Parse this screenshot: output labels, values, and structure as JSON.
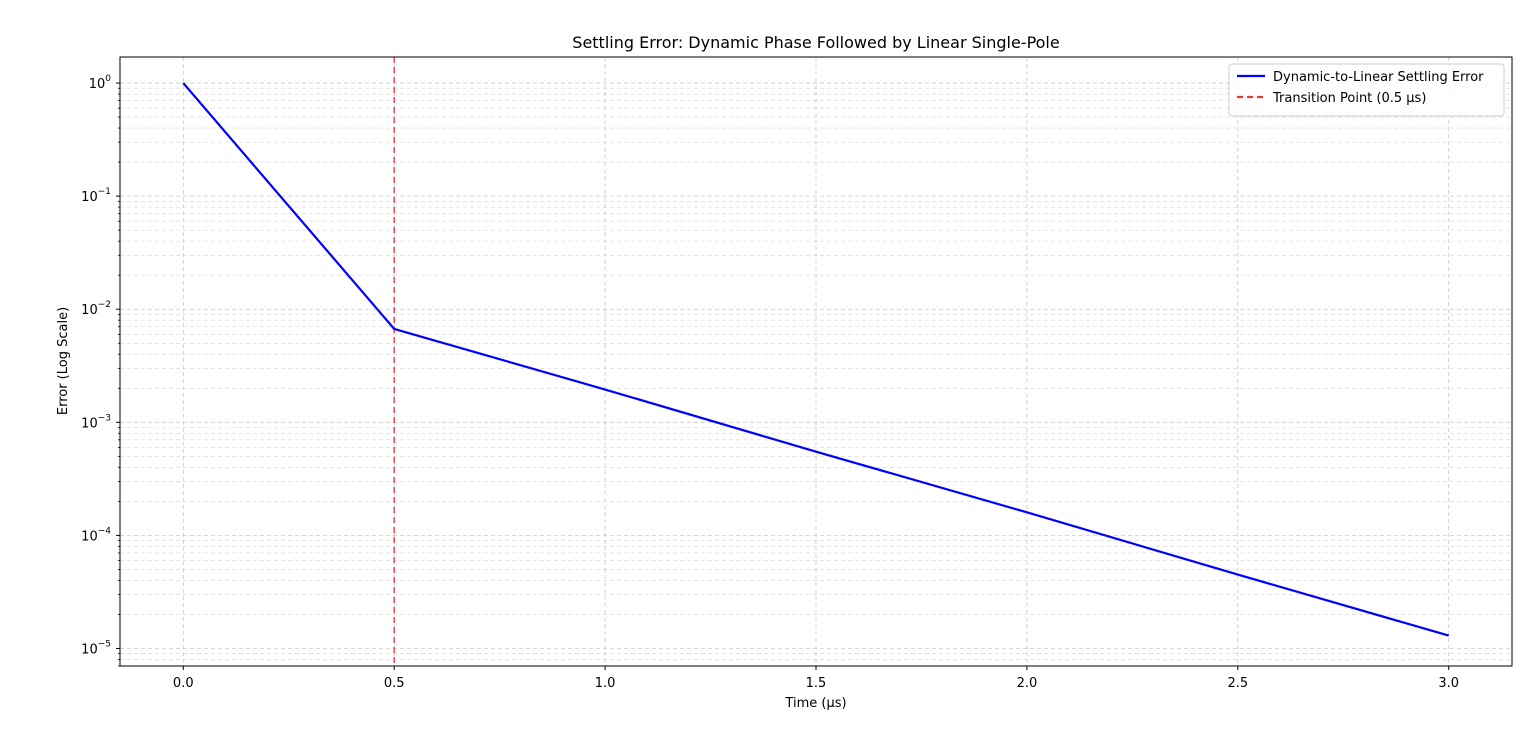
{
  "chart_data": {
    "type": "line",
    "title": "Settling Error: Dynamic Phase Followed by Linear Single-Pole",
    "xlabel": "Time (μs)",
    "ylabel": "Error (Log Scale)",
    "xlim": [
      -0.15,
      3.15
    ],
    "ylim": [
      7e-06,
      1.7
    ],
    "yscale": "log",
    "grid": true,
    "legend_position": "top-right",
    "x_ticks": [
      0.0,
      0.5,
      1.0,
      1.5,
      2.0,
      2.5,
      3.0
    ],
    "x_tick_labels": [
      "0.0",
      "0.5",
      "1.0",
      "1.5",
      "2.0",
      "2.5",
      "3.0"
    ],
    "y_ticks": [
      {
        "base": "10",
        "exp": "0",
        "value": 1
      },
      {
        "base": "10",
        "exp": "−1",
        "value": 0.1
      },
      {
        "base": "10",
        "exp": "−2",
        "value": 0.01
      },
      {
        "base": "10",
        "exp": "−3",
        "value": 0.001
      },
      {
        "base": "10",
        "exp": "−4",
        "value": 0.0001
      },
      {
        "base": "10",
        "exp": "−5",
        "value": 1e-05
      }
    ],
    "series": [
      {
        "name": "Dynamic-to-Linear Settling Error",
        "color": "#0000ff",
        "style": "solid",
        "x": [
          0.0,
          0.5,
          1.0,
          1.5,
          2.0,
          2.5,
          3.0
        ],
        "y": [
          1.0,
          0.0067,
          0.00195,
          0.00055,
          0.00016,
          4.5e-05,
          1.3e-05
        ]
      }
    ],
    "annotations": [
      {
        "type": "vline",
        "name": "Transition Point (0.5 μs)",
        "x": 0.5,
        "color": "#e8393a",
        "style": "dashed"
      }
    ]
  }
}
